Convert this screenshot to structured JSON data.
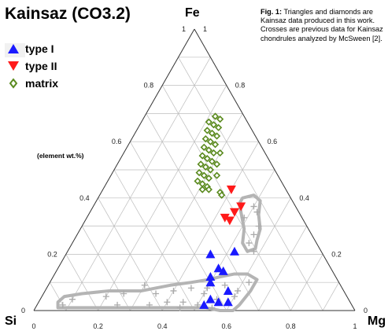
{
  "chart_data": {
    "type": "ternary",
    "title": "Kainsaz (CO3.2)",
    "caption": {
      "label": "Fig. 1:",
      "text": "Triangles and diamonds are Kainsaz data produced in this work. Crosses are previous data for Kainsaz chondrules analyzed by McSween [2]."
    },
    "annotation": "(element wt.%)",
    "axes": {
      "top": "Fe",
      "left": "Si",
      "right": "Mg",
      "ticks": [
        0,
        0.2,
        0.4,
        0.6,
        0.8,
        1
      ],
      "left_edge_labels": [
        "0",
        "0.2",
        "0.4",
        "0.6",
        "0.8",
        "1"
      ],
      "right_edge_labels": [
        "1",
        "0.8",
        "0.6",
        "0.4",
        "0.2",
        "0"
      ],
      "bottom_edge_labels": [
        "0",
        "0.2",
        "0.4",
        "0.6",
        "0.8",
        "1"
      ]
    },
    "grid": true,
    "legend_position": "top-left",
    "legend": [
      {
        "name": "type I",
        "marker": "triangle-up",
        "color": "#1a1aff"
      },
      {
        "name": "type II",
        "marker": "triangle-down",
        "color": "#ff1a1a"
      },
      {
        "name": "matrix",
        "marker": "diamond-open",
        "color": "#5a8a1e"
      }
    ],
    "series": [
      {
        "name": "type I",
        "points": [
          {
            "Fe": 0.21,
            "Mg": 0.52
          },
          {
            "Fe": 0.2,
            "Mg": 0.45
          },
          {
            "Fe": 0.14,
            "Mg": 0.52
          },
          {
            "Fe": 0.12,
            "Mg": 0.49
          },
          {
            "Fe": 0.15,
            "Mg": 0.5
          },
          {
            "Fe": 0.1,
            "Mg": 0.5
          },
          {
            "Fe": 0.07,
            "Mg": 0.57
          },
          {
            "Fe": 0.03,
            "Mg": 0.56
          },
          {
            "Fe": 0.03,
            "Mg": 0.59
          },
          {
            "Fe": 0.04,
            "Mg": 0.53
          },
          {
            "Fe": 0.02,
            "Mg": 0.52
          }
        ]
      },
      {
        "name": "type II",
        "points": [
          {
            "Fe": 0.43,
            "Mg": 0.4
          },
          {
            "Fe": 0.37,
            "Mg": 0.46
          },
          {
            "Fe": 0.35,
            "Mg": 0.45
          },
          {
            "Fe": 0.32,
            "Mg": 0.45
          },
          {
            "Fe": 0.33,
            "Mg": 0.43
          }
        ]
      },
      {
        "name": "matrix",
        "points": [
          {
            "Fe": 0.69,
            "Mg": 0.22
          },
          {
            "Fe": 0.68,
            "Mg": 0.24
          },
          {
            "Fe": 0.67,
            "Mg": 0.21
          },
          {
            "Fe": 0.66,
            "Mg": 0.23
          },
          {
            "Fe": 0.65,
            "Mg": 0.25
          },
          {
            "Fe": 0.64,
            "Mg": 0.22
          },
          {
            "Fe": 0.63,
            "Mg": 0.24
          },
          {
            "Fe": 0.62,
            "Mg": 0.26
          },
          {
            "Fe": 0.61,
            "Mg": 0.23
          },
          {
            "Fe": 0.6,
            "Mg": 0.25
          },
          {
            "Fe": 0.59,
            "Mg": 0.27
          },
          {
            "Fe": 0.58,
            "Mg": 0.24
          },
          {
            "Fe": 0.57,
            "Mg": 0.26
          },
          {
            "Fe": 0.56,
            "Mg": 0.28
          },
          {
            "Fe": 0.55,
            "Mg": 0.25
          },
          {
            "Fe": 0.54,
            "Mg": 0.27
          },
          {
            "Fe": 0.53,
            "Mg": 0.29
          },
          {
            "Fe": 0.52,
            "Mg": 0.26
          },
          {
            "Fe": 0.51,
            "Mg": 0.28
          },
          {
            "Fe": 0.5,
            "Mg": 0.3
          },
          {
            "Fe": 0.49,
            "Mg": 0.27
          },
          {
            "Fe": 0.48,
            "Mg": 0.29
          },
          {
            "Fe": 0.47,
            "Mg": 0.31
          },
          {
            "Fe": 0.46,
            "Mg": 0.28
          },
          {
            "Fe": 0.45,
            "Mg": 0.3
          },
          {
            "Fe": 0.44,
            "Mg": 0.32
          },
          {
            "Fe": 0.43,
            "Mg": 0.31
          },
          {
            "Fe": 0.43,
            "Mg": 0.33
          },
          {
            "Fe": 0.42,
            "Mg": 0.37
          },
          {
            "Fe": 0.41,
            "Mg": 0.38
          },
          {
            "Fe": 0.56,
            "Mg": 0.3
          },
          {
            "Fe": 0.52,
            "Mg": 0.31
          },
          {
            "Fe": 0.48,
            "Mg": 0.33
          }
        ]
      },
      {
        "name": "McSween [2]",
        "marker": "cross",
        "color": "#aaaaaa",
        "points": [
          {
            "Fe": 0.37,
            "Mg": 0.5
          },
          {
            "Fe": 0.35,
            "Mg": 0.52
          },
          {
            "Fe": 0.33,
            "Mg": 0.49
          },
          {
            "Fe": 0.3,
            "Mg": 0.55
          },
          {
            "Fe": 0.27,
            "Mg": 0.55
          },
          {
            "Fe": 0.24,
            "Mg": 0.55
          },
          {
            "Fe": 0.21,
            "Mg": 0.58
          },
          {
            "Fe": 0.1,
            "Mg": 0.62
          },
          {
            "Fe": 0.09,
            "Mg": 0.55
          },
          {
            "Fe": 0.08,
            "Mg": 0.5
          },
          {
            "Fe": 0.08,
            "Mg": 0.45
          },
          {
            "Fe": 0.07,
            "Mg": 0.4
          },
          {
            "Fe": 0.06,
            "Mg": 0.35
          },
          {
            "Fe": 0.06,
            "Mg": 0.25
          },
          {
            "Fe": 0.05,
            "Mg": 0.2
          },
          {
            "Fe": 0.04,
            "Mg": 0.1
          },
          {
            "Fe": 0.02,
            "Mg": 0.08
          },
          {
            "Fe": 0.05,
            "Mg": 0.6
          },
          {
            "Fe": 0.04,
            "Mg": 0.55
          },
          {
            "Fe": 0.03,
            "Mg": 0.45
          },
          {
            "Fe": 0.03,
            "Mg": 0.4
          },
          {
            "Fe": 0.02,
            "Mg": 0.35
          },
          {
            "Fe": 0.02,
            "Mg": 0.25
          },
          {
            "Fe": 0.02,
            "Mg": 0.5
          },
          {
            "Fe": 0.01,
            "Mg": 0.55
          },
          {
            "Fe": 0.01,
            "Mg": 0.45
          },
          {
            "Fe": 0.09,
            "Mg": 0.3
          },
          {
            "Fe": 0.07,
            "Mg": 0.6
          },
          {
            "Fe": 0.06,
            "Mg": 0.5
          }
        ]
      }
    ],
    "fields": [
      {
        "name": "upper field",
        "color": "#b4b4b4",
        "outline": [
          {
            "Fe": 0.4,
            "Mg": 0.45
          },
          {
            "Fe": 0.41,
            "Mg": 0.48
          },
          {
            "Fe": 0.39,
            "Mg": 0.51
          },
          {
            "Fe": 0.34,
            "Mg": 0.53
          },
          {
            "Fe": 0.29,
            "Mg": 0.56
          },
          {
            "Fe": 0.25,
            "Mg": 0.57
          },
          {
            "Fe": 0.22,
            "Mg": 0.58
          },
          {
            "Fe": 0.21,
            "Mg": 0.56
          },
          {
            "Fe": 0.24,
            "Mg": 0.53
          },
          {
            "Fe": 0.29,
            "Mg": 0.51
          },
          {
            "Fe": 0.32,
            "Mg": 0.49
          },
          {
            "Fe": 0.35,
            "Mg": 0.47
          },
          {
            "Fe": 0.38,
            "Mg": 0.45
          }
        ]
      },
      {
        "name": "lower field",
        "color": "#b4b4b4",
        "outline": [
          {
            "Fe": 0.13,
            "Mg": 0.6
          },
          {
            "Fe": 0.11,
            "Mg": 0.64
          },
          {
            "Fe": 0.07,
            "Mg": 0.64
          },
          {
            "Fe": 0.02,
            "Mg": 0.63
          },
          {
            "Fe": 0.0,
            "Mg": 0.62
          },
          {
            "Fe": 0.0,
            "Mg": 0.58
          },
          {
            "Fe": 0.01,
            "Mg": 0.53
          },
          {
            "Fe": 0.01,
            "Mg": 0.45
          },
          {
            "Fe": 0.01,
            "Mg": 0.35
          },
          {
            "Fe": 0.01,
            "Mg": 0.25
          },
          {
            "Fe": 0.01,
            "Mg": 0.12
          },
          {
            "Fe": 0.01,
            "Mg": 0.07
          },
          {
            "Fe": 0.03,
            "Mg": 0.06
          },
          {
            "Fe": 0.05,
            "Mg": 0.07
          },
          {
            "Fe": 0.06,
            "Mg": 0.12
          },
          {
            "Fe": 0.07,
            "Mg": 0.2
          },
          {
            "Fe": 0.07,
            "Mg": 0.3
          },
          {
            "Fe": 0.09,
            "Mg": 0.38
          },
          {
            "Fe": 0.1,
            "Mg": 0.44
          },
          {
            "Fe": 0.11,
            "Mg": 0.49
          },
          {
            "Fe": 0.12,
            "Mg": 0.52
          },
          {
            "Fe": 0.13,
            "Mg": 0.56
          }
        ]
      }
    ]
  }
}
